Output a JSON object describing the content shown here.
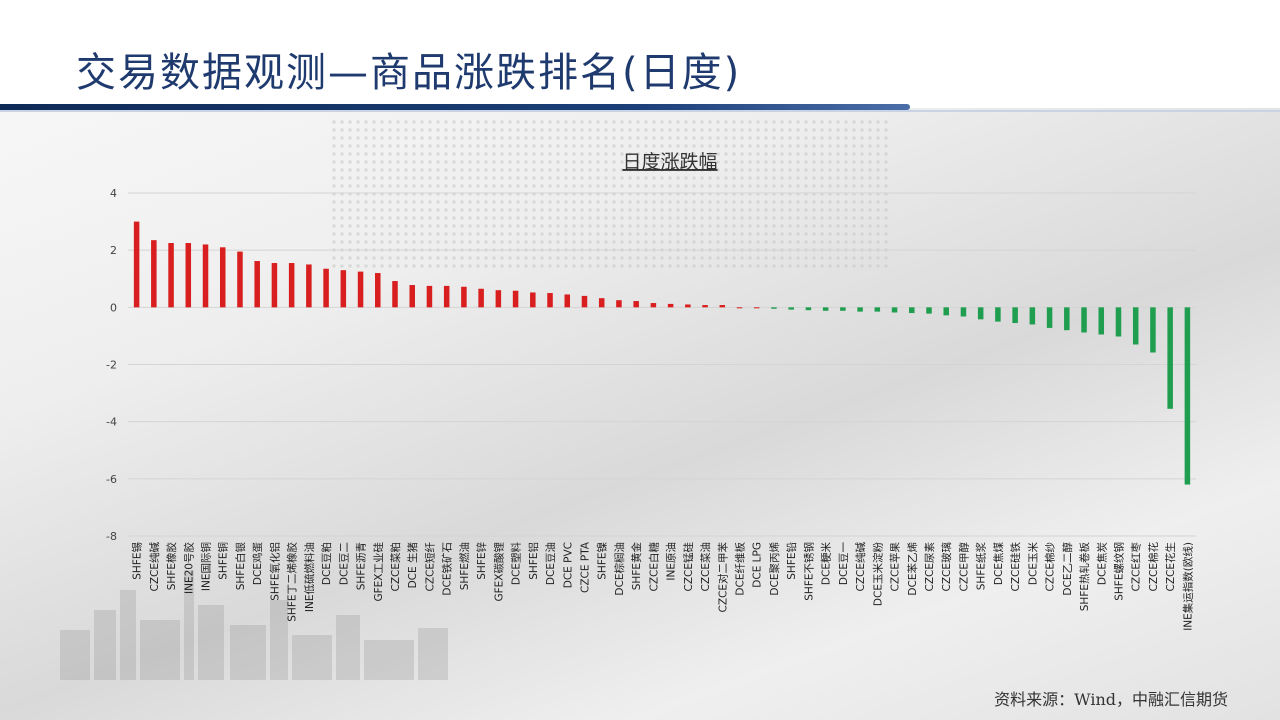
{
  "title": "交易数据观测—商品涨跌排名(日度)",
  "source": "资料来源：Wind，中融汇信期货",
  "colors": {
    "up": "#d81e1e",
    "down": "#1f9e4f",
    "title": "#1f3a6e"
  },
  "chart_data": {
    "type": "bar",
    "title": "日度涨跌幅",
    "xlabel": "",
    "ylabel": "",
    "ylim": [
      -8,
      4
    ],
    "yticks": [
      -8,
      -6,
      -4,
      -2,
      0,
      2,
      4
    ],
    "grid": true,
    "legend": "none",
    "categories": [
      "SHFE锡",
      "CZCE纯碱",
      "SHFE橡胶",
      "INE20号胶",
      "INE国际铜",
      "SHFE铜",
      "SHFE白银",
      "DCE鸡蛋",
      "SHFE氧化铝",
      "SHFE丁二烯橡胶",
      "INE低硫燃料油",
      "DCE豆粕",
      "DCE豆二",
      "SHFE沥青",
      "GFEX工业硅",
      "CZCE菜粕",
      "DCE 生猪",
      "CZCE短纤",
      "DCE铁矿石",
      "SHFE燃油",
      "SHFE锌",
      "GFEX碳酸锂",
      "DCE塑料",
      "SHFE铝",
      "DCE豆油",
      "DCE PVC",
      "CZCE PTA",
      "SHFE镍",
      "DCE棕榈油",
      "SHFE黄金",
      "CZCE白糖",
      "INE原油",
      "CZCE锰硅",
      "CZCE菜油",
      "CZCE对二甲苯",
      "DCE纤维板",
      "DCE LPG",
      "DCE聚丙烯",
      "SHFE铅",
      "SHFE不锈钢",
      "DCE粳米",
      "DCE豆一",
      "CZCE纯碱",
      "DCE玉米淀粉",
      "CZCE苹果",
      "DCE苯乙烯",
      "CZCE尿素",
      "CZCE玻璃",
      "CZCE甲醇",
      "SHFE纸浆",
      "DCE焦煤",
      "CZCE硅铁",
      "DCE玉米",
      "CZCE棉纱",
      "DCE乙二醇",
      "SHFE热轧卷板",
      "DCE焦炭",
      "SHFE螺纹钢",
      "CZCE红枣",
      "CZCE棉花",
      "CZCE花生",
      "INE集运指数(欧线)"
    ],
    "values": [
      3.0,
      2.35,
      2.25,
      2.25,
      2.2,
      2.1,
      1.95,
      1.62,
      1.55,
      1.55,
      1.5,
      1.35,
      1.3,
      1.25,
      1.2,
      0.92,
      0.78,
      0.75,
      0.75,
      0.72,
      0.65,
      0.6,
      0.58,
      0.52,
      0.5,
      0.45,
      0.4,
      0.32,
      0.25,
      0.22,
      0.15,
      0.12,
      0.1,
      0.08,
      0.08,
      0.0,
      0.0,
      -0.05,
      -0.08,
      -0.1,
      -0.12,
      -0.12,
      -0.15,
      -0.15,
      -0.18,
      -0.2,
      -0.22,
      -0.28,
      -0.32,
      -0.42,
      -0.5,
      -0.55,
      -0.6,
      -0.72,
      -0.8,
      -0.88,
      -0.95,
      -1.02,
      -1.3,
      -1.58,
      -3.55,
      -6.2
    ]
  }
}
